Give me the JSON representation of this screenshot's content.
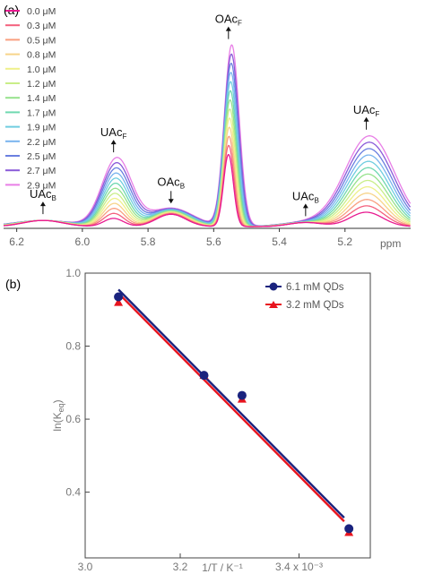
{
  "chart_data": [
    {
      "panel_label": "(a)",
      "type": "line",
      "xlabel": "ppm",
      "xlim": [
        6.24,
        5.0
      ],
      "x_ticks": [
        "6.2",
        "6.0",
        "5.8",
        "5.6",
        "5.4",
        "5.2"
      ],
      "x_tick_values": [
        6.2,
        6.0,
        5.8,
        5.6,
        5.4,
        5.2
      ],
      "grid": false,
      "legend_position": "top-left",
      "peaks": [
        {
          "label": "UAc",
          "sub": "B",
          "ppm": 6.12,
          "min_height": 0.03,
          "max_height": 0.03,
          "width": 0.06,
          "arrow": "up"
        },
        {
          "label": "UAc",
          "sub": "F",
          "ppm": 5.905,
          "min_height": 0.04,
          "max_height": 0.33,
          "width": 0.03,
          "arrow": "up"
        },
        {
          "label": "OAc",
          "sub": "B",
          "ppm": 5.73,
          "min_height": 0.06,
          "max_height": 0.09,
          "width": 0.045,
          "arrow": "down"
        },
        {
          "label": "OAc",
          "sub": "F",
          "ppm": 5.555,
          "min_height": 0.35,
          "max_height": 0.88,
          "width": 0.015,
          "arrow": "up"
        },
        {
          "label": "UAc",
          "sub": "B",
          "ppm": 5.32,
          "min_height": 0.02,
          "max_height": 0.02,
          "width": 0.05,
          "arrow": "up"
        },
        {
          "label": "UAc",
          "sub": "F",
          "ppm": 5.135,
          "min_height": 0.07,
          "max_height": 0.44,
          "width": 0.05,
          "arrow": "up"
        }
      ],
      "series": [
        {
          "name": "0.0 μM",
          "color": "#e8198f"
        },
        {
          "name": "0.3 μM",
          "color": "#f4607d"
        },
        {
          "name": "0.5 μM",
          "color": "#f99f7f"
        },
        {
          "name": "0.8 μM",
          "color": "#f7d48a"
        },
        {
          "name": "1.0 μM",
          "color": "#eef08a"
        },
        {
          "name": "1.2 μM",
          "color": "#c9ee88"
        },
        {
          "name": "1.4 μM",
          "color": "#96e28c"
        },
        {
          "name": "1.7 μM",
          "color": "#6fd8b0"
        },
        {
          "name": "1.9 μM",
          "color": "#6fcde0"
        },
        {
          "name": "2.2 μM",
          "color": "#79b4ee"
        },
        {
          "name": "2.5 μM",
          "color": "#6a7fe0"
        },
        {
          "name": "2.7 μM",
          "color": "#8a5bd8"
        },
        {
          "name": "2.9 μM",
          "color": "#e87ee6"
        }
      ]
    },
    {
      "panel_label": "(b)",
      "type": "scatter",
      "xlabel": "1/T / K⁻¹",
      "ylabel": "ln(K",
      "ylabel_sub": "eq",
      "ylabel_end": ")",
      "xlim": [
        3.0,
        3.6
      ],
      "ylim": [
        0.22,
        1.0
      ],
      "x_ticks": [
        "3.0",
        "3.2",
        "3.4 x 10⁻³"
      ],
      "x_tick_values": [
        3.0,
        3.2,
        3.45
      ],
      "y_ticks": [
        "0.4",
        "0.6",
        "0.8",
        "1.0"
      ],
      "y_tick_values": [
        0.4,
        0.6,
        0.8,
        1.0
      ],
      "grid": false,
      "legend_position": "top-right",
      "series": [
        {
          "name": "6.1 mM QDs",
          "color": "#1a237e",
          "marker": "circle",
          "x": [
            3.07,
            3.25,
            3.33,
            3.555
          ],
          "y": [
            0.935,
            0.72,
            0.665,
            0.3
          ],
          "fit": {
            "x": [
              3.07,
              3.545
            ],
            "y": [
              0.955,
              0.33
            ]
          }
        },
        {
          "name": "3.2 mM QDs",
          "color": "#e8141e",
          "marker": "triangle",
          "x": [
            3.07,
            3.25,
            3.33,
            3.555
          ],
          "y": [
            0.92,
            0.72,
            0.655,
            0.29
          ],
          "fit": {
            "x": [
              3.07,
              3.545
            ],
            "y": [
              0.945,
              0.32
            ]
          }
        }
      ]
    }
  ]
}
